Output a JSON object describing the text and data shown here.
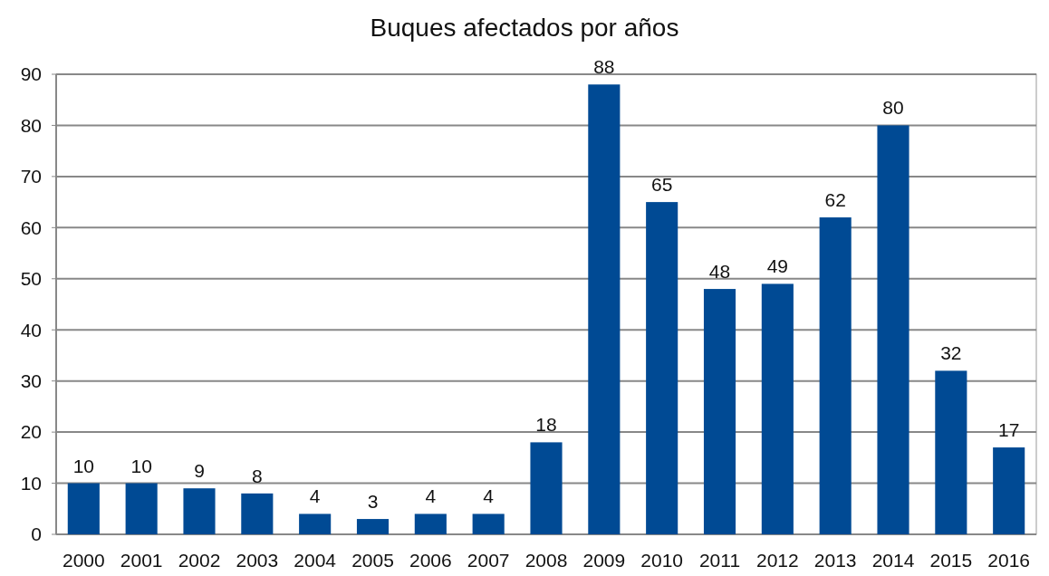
{
  "chart_data": {
    "type": "bar",
    "title": "Buques afectados por años",
    "categories": [
      "2000",
      "2001",
      "2002",
      "2003",
      "2004",
      "2005",
      "2006",
      "2007",
      "2008",
      "2009",
      "2010",
      "2011",
      "2012",
      "2013",
      "2014",
      "2015",
      "2016"
    ],
    "values": [
      10,
      10,
      9,
      8,
      4,
      3,
      4,
      4,
      18,
      88,
      65,
      48,
      49,
      62,
      80,
      32,
      17
    ],
    "color": "#004a94",
    "ylim": [
      0,
      90
    ],
    "yticks": [
      0,
      10,
      20,
      30,
      40,
      50,
      60,
      70,
      80,
      90
    ],
    "grid": "y",
    "data_labels": true
  }
}
